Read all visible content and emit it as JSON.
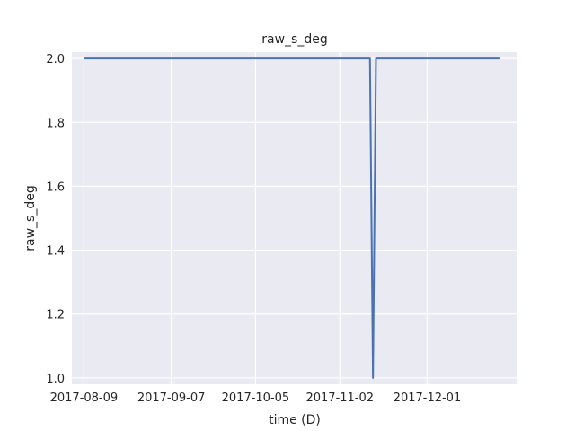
{
  "chart_data": {
    "type": "line",
    "title": "raw_s_deg",
    "xlabel": "time (D)",
    "ylabel": "raw_s_deg",
    "x_ticks": [
      "2017-08-09",
      "2017-09-07",
      "2017-10-05",
      "2017-11-02",
      "2017-12-01"
    ],
    "y_ticks": [
      "1.0",
      "1.2",
      "1.4",
      "1.6",
      "1.8",
      "2.0"
    ],
    "xlim": [
      "2017-08-05",
      "2017-12-31"
    ],
    "ylim": [
      0.98,
      2.02
    ],
    "grid": true,
    "series": [
      {
        "color": "#4c72b0",
        "x": [
          "2017-08-09",
          "2017-11-12",
          "2017-11-13",
          "2017-11-14",
          "2017-12-25"
        ],
        "y": [
          2.0,
          2.0,
          1.0,
          2.0,
          2.0
        ]
      }
    ]
  },
  "colors": {
    "plot_background": "#eaeaf2",
    "grid": "#ffffff",
    "line": "#4c72b0"
  }
}
